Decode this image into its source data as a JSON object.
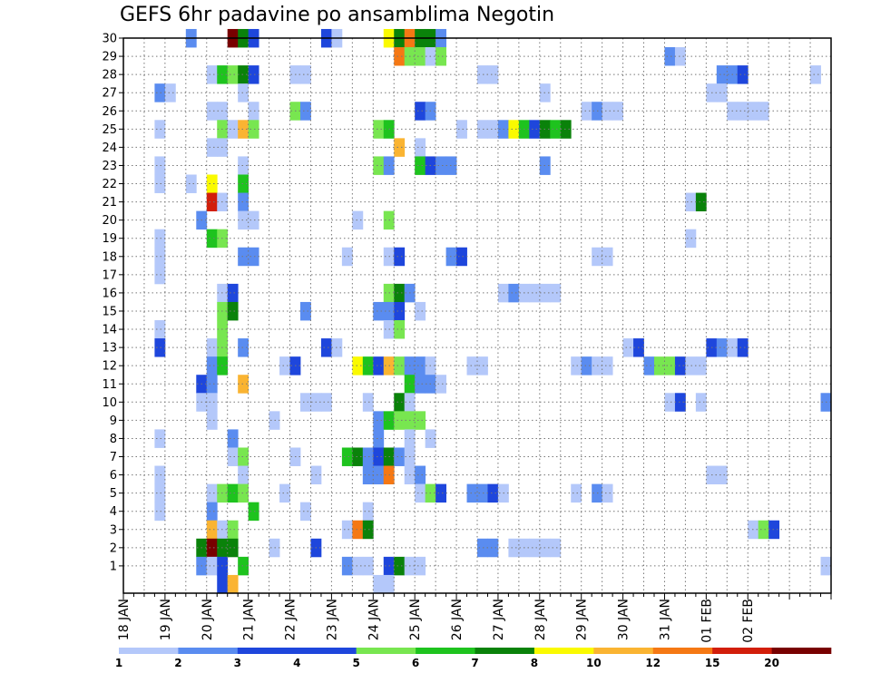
{
  "chart_data": {
    "type": "heatmap",
    "title": "GEFS 6hr padavine po ansamblima Negotin",
    "xlabel": "",
    "ylabel": "",
    "members": [
      1,
      2,
      3,
      4,
      5,
      6,
      7,
      8,
      9,
      10,
      11,
      12,
      13,
      14,
      15,
      16,
      17,
      18,
      19,
      20,
      21,
      22,
      23,
      24,
      25,
      26,
      27,
      28,
      29,
      30
    ],
    "time_step_hours": 6,
    "x_tick_labels": [
      "18 JAN",
      "19 JAN",
      "20 JAN",
      "21 JAN",
      "22 JAN",
      "23 JAN",
      "24 JAN",
      "25 JAN",
      "26 JAN",
      "27 JAN",
      "28 JAN",
      "29 JAN",
      "30 JAN",
      "31 JAN",
      "01 FEB",
      "02 FEB"
    ],
    "colorbar": {
      "levels": [
        1,
        2,
        3,
        4,
        5,
        6,
        7,
        8,
        10,
        12,
        15,
        20
      ],
      "colors": [
        "#b4c8fa",
        "#5a8cf0",
        "#1e46dc",
        "#1e46dc",
        "#78e650",
        "#1ec31e",
        "#0a820a",
        "#fafa00",
        "#fab432",
        "#f57814",
        "#d21e0a",
        "#780000"
      ]
    },
    "cells": [
      {
        "m": 30,
        "t": 6,
        "v": 2
      },
      {
        "m": 30,
        "t": 10,
        "v": 20
      },
      {
        "m": 30,
        "t": 11,
        "v": 7
      },
      {
        "m": 30,
        "t": 12,
        "v": 3
      },
      {
        "m": 30,
        "t": 19,
        "v": 3
      },
      {
        "m": 30,
        "t": 20,
        "v": 1
      },
      {
        "m": 30,
        "t": 25,
        "v": 8
      },
      {
        "m": 30,
        "t": 26,
        "v": 7
      },
      {
        "m": 30,
        "t": 27,
        "v": 12
      },
      {
        "m": 30,
        "t": 28,
        "v": 7
      },
      {
        "m": 30,
        "t": 29,
        "v": 7
      },
      {
        "m": 30,
        "t": 30,
        "v": 2
      },
      {
        "m": 29,
        "t": 26,
        "v": 12
      },
      {
        "m": 29,
        "t": 27,
        "v": 5
      },
      {
        "m": 29,
        "t": 28,
        "v": 5
      },
      {
        "m": 29,
        "t": 29,
        "v": 1
      },
      {
        "m": 29,
        "t": 30,
        "v": 5
      },
      {
        "m": 29,
        "t": 52,
        "v": 2
      },
      {
        "m": 29,
        "t": 53,
        "v": 1
      },
      {
        "m": 28,
        "t": 8,
        "v": 1
      },
      {
        "m": 28,
        "t": 9,
        "v": 6
      },
      {
        "m": 28,
        "t": 10,
        "v": 5
      },
      {
        "m": 28,
        "t": 11,
        "v": 7
      },
      {
        "m": 28,
        "t": 12,
        "v": 3
      },
      {
        "m": 28,
        "t": 16,
        "v": 1
      },
      {
        "m": 28,
        "t": 17,
        "v": 1
      },
      {
        "m": 28,
        "t": 34,
        "v": 1
      },
      {
        "m": 28,
        "t": 35,
        "v": 1
      },
      {
        "m": 28,
        "t": 57,
        "v": 2
      },
      {
        "m": 28,
        "t": 58,
        "v": 2
      },
      {
        "m": 28,
        "t": 59,
        "v": 3
      },
      {
        "m": 28,
        "t": 66,
        "v": 1
      },
      {
        "m": 27,
        "t": 3,
        "v": 2
      },
      {
        "m": 27,
        "t": 4,
        "v": 1
      },
      {
        "m": 27,
        "t": 11,
        "v": 1
      },
      {
        "m": 27,
        "t": 40,
        "v": 1
      },
      {
        "m": 27,
        "t": 56,
        "v": 1
      },
      {
        "m": 27,
        "t": 57,
        "v": 1
      },
      {
        "m": 26,
        "t": 8,
        "v": 1
      },
      {
        "m": 26,
        "t": 9,
        "v": 1
      },
      {
        "m": 26,
        "t": 12,
        "v": 1
      },
      {
        "m": 26,
        "t": 16,
        "v": 5
      },
      {
        "m": 26,
        "t": 17,
        "v": 2
      },
      {
        "m": 26,
        "t": 28,
        "v": 3
      },
      {
        "m": 26,
        "t": 29,
        "v": 2
      },
      {
        "m": 26,
        "t": 44,
        "v": 1
      },
      {
        "m": 26,
        "t": 45,
        "v": 2
      },
      {
        "m": 26,
        "t": 46,
        "v": 1
      },
      {
        "m": 26,
        "t": 47,
        "v": 1
      },
      {
        "m": 26,
        "t": 58,
        "v": 1
      },
      {
        "m": 26,
        "t": 59,
        "v": 1
      },
      {
        "m": 26,
        "t": 60,
        "v": 1
      },
      {
        "m": 26,
        "t": 61,
        "v": 1
      },
      {
        "m": 25,
        "t": 3,
        "v": 1
      },
      {
        "m": 25,
        "t": 9,
        "v": 5
      },
      {
        "m": 25,
        "t": 10,
        "v": 1
      },
      {
        "m": 25,
        "t": 11,
        "v": 10
      },
      {
        "m": 25,
        "t": 12,
        "v": 5
      },
      {
        "m": 25,
        "t": 24,
        "v": 5
      },
      {
        "m": 25,
        "t": 25,
        "v": 6
      },
      {
        "m": 25,
        "t": 32,
        "v": 1
      },
      {
        "m": 25,
        "t": 34,
        "v": 1
      },
      {
        "m": 25,
        "t": 35,
        "v": 1
      },
      {
        "m": 25,
        "t": 36,
        "v": 2
      },
      {
        "m": 25,
        "t": 37,
        "v": 8
      },
      {
        "m": 25,
        "t": 38,
        "v": 6
      },
      {
        "m": 25,
        "t": 39,
        "v": 3
      },
      {
        "m": 25,
        "t": 40,
        "v": 7
      },
      {
        "m": 25,
        "t": 41,
        "v": 6
      },
      {
        "m": 25,
        "t": 42,
        "v": 7
      },
      {
        "m": 24,
        "t": 8,
        "v": 1
      },
      {
        "m": 24,
        "t": 9,
        "v": 1
      },
      {
        "m": 24,
        "t": 26,
        "v": 10
      },
      {
        "m": 24,
        "t": 28,
        "v": 1
      },
      {
        "m": 23,
        "t": 3,
        "v": 1
      },
      {
        "m": 23,
        "t": 11,
        "v": 1
      },
      {
        "m": 23,
        "t": 24,
        "v": 5
      },
      {
        "m": 23,
        "t": 25,
        "v": 2
      },
      {
        "m": 23,
        "t": 28,
        "v": 6
      },
      {
        "m": 23,
        "t": 29,
        "v": 3
      },
      {
        "m": 23,
        "t": 30,
        "v": 2
      },
      {
        "m": 23,
        "t": 31,
        "v": 2
      },
      {
        "m": 23,
        "t": 40,
        "v": 2
      },
      {
        "m": 22,
        "t": 3,
        "v": 1
      },
      {
        "m": 22,
        "t": 6,
        "v": 1
      },
      {
        "m": 22,
        "t": 8,
        "v": 8
      },
      {
        "m": 22,
        "t": 11,
        "v": 6
      },
      {
        "m": 21,
        "t": 8,
        "v": 15
      },
      {
        "m": 21,
        "t": 9,
        "v": 1
      },
      {
        "m": 21,
        "t": 11,
        "v": 2
      },
      {
        "m": 21,
        "t": 54,
        "v": 1
      },
      {
        "m": 21,
        "t": 55,
        "v": 7
      },
      {
        "m": 20,
        "t": 7,
        "v": 2
      },
      {
        "m": 20,
        "t": 11,
        "v": 1
      },
      {
        "m": 20,
        "t": 12,
        "v": 1
      },
      {
        "m": 20,
        "t": 22,
        "v": 1
      },
      {
        "m": 20,
        "t": 25,
        "v": 5
      },
      {
        "m": 19,
        "t": 3,
        "v": 1
      },
      {
        "m": 19,
        "t": 8,
        "v": 6
      },
      {
        "m": 19,
        "t": 9,
        "v": 5
      },
      {
        "m": 19,
        "t": 54,
        "v": 1
      },
      {
        "m": 18,
        "t": 3,
        "v": 1
      },
      {
        "m": 18,
        "t": 11,
        "v": 2
      },
      {
        "m": 18,
        "t": 12,
        "v": 2
      },
      {
        "m": 18,
        "t": 21,
        "v": 1
      },
      {
        "m": 18,
        "t": 25,
        "v": 1
      },
      {
        "m": 18,
        "t": 26,
        "v": 3
      },
      {
        "m": 18,
        "t": 31,
        "v": 2
      },
      {
        "m": 18,
        "t": 32,
        "v": 3
      },
      {
        "m": 18,
        "t": 45,
        "v": 1
      },
      {
        "m": 18,
        "t": 46,
        "v": 1
      },
      {
        "m": 17,
        "t": 3,
        "v": 1
      },
      {
        "m": 16,
        "t": 9,
        "v": 1
      },
      {
        "m": 16,
        "t": 10,
        "v": 3
      },
      {
        "m": 16,
        "t": 25,
        "v": 5
      },
      {
        "m": 16,
        "t": 26,
        "v": 7
      },
      {
        "m": 16,
        "t": 27,
        "v": 2
      },
      {
        "m": 16,
        "t": 36,
        "v": 1
      },
      {
        "m": 16,
        "t": 37,
        "v": 2
      },
      {
        "m": 16,
        "t": 38,
        "v": 1
      },
      {
        "m": 16,
        "t": 39,
        "v": 1
      },
      {
        "m": 16,
        "t": 40,
        "v": 1
      },
      {
        "m": 16,
        "t": 41,
        "v": 1
      },
      {
        "m": 15,
        "t": 9,
        "v": 5
      },
      {
        "m": 15,
        "t": 10,
        "v": 7
      },
      {
        "m": 15,
        "t": 17,
        "v": 2
      },
      {
        "m": 15,
        "t": 24,
        "v": 2
      },
      {
        "m": 15,
        "t": 25,
        "v": 2
      },
      {
        "m": 15,
        "t": 26,
        "v": 3
      },
      {
        "m": 15,
        "t": 28,
        "v": 1
      },
      {
        "m": 14,
        "t": 3,
        "v": 1
      },
      {
        "m": 14,
        "t": 9,
        "v": 5
      },
      {
        "m": 14,
        "t": 25,
        "v": 1
      },
      {
        "m": 14,
        "t": 26,
        "v": 5
      },
      {
        "m": 13,
        "t": 3,
        "v": 3
      },
      {
        "m": 13,
        "t": 8,
        "v": 1
      },
      {
        "m": 13,
        "t": 9,
        "v": 5
      },
      {
        "m": 13,
        "t": 11,
        "v": 2
      },
      {
        "m": 13,
        "t": 19,
        "v": 3
      },
      {
        "m": 13,
        "t": 20,
        "v": 1
      },
      {
        "m": 13,
        "t": 48,
        "v": 1
      },
      {
        "m": 13,
        "t": 49,
        "v": 3
      },
      {
        "m": 13,
        "t": 56,
        "v": 3
      },
      {
        "m": 13,
        "t": 57,
        "v": 2
      },
      {
        "m": 13,
        "t": 58,
        "v": 1
      },
      {
        "m": 13,
        "t": 59,
        "v": 3
      },
      {
        "m": 12,
        "t": 8,
        "v": 2
      },
      {
        "m": 12,
        "t": 9,
        "v": 6
      },
      {
        "m": 12,
        "t": 15,
        "v": 1
      },
      {
        "m": 12,
        "t": 16,
        "v": 3
      },
      {
        "m": 12,
        "t": 22,
        "v": 8
      },
      {
        "m": 12,
        "t": 23,
        "v": 6
      },
      {
        "m": 12,
        "t": 24,
        "v": 3
      },
      {
        "m": 12,
        "t": 25,
        "v": 10
      },
      {
        "m": 12,
        "t": 26,
        "v": 5
      },
      {
        "m": 12,
        "t": 27,
        "v": 2
      },
      {
        "m": 12,
        "t": 28,
        "v": 2
      },
      {
        "m": 12,
        "t": 29,
        "v": 1
      },
      {
        "m": 12,
        "t": 33,
        "v": 1
      },
      {
        "m": 12,
        "t": 34,
        "v": 1
      },
      {
        "m": 12,
        "t": 43,
        "v": 1
      },
      {
        "m": 12,
        "t": 44,
        "v": 2
      },
      {
        "m": 12,
        "t": 45,
        "v": 1
      },
      {
        "m": 12,
        "t": 46,
        "v": 1
      },
      {
        "m": 12,
        "t": 50,
        "v": 2
      },
      {
        "m": 12,
        "t": 51,
        "v": 5
      },
      {
        "m": 12,
        "t": 52,
        "v": 5
      },
      {
        "m": 12,
        "t": 53,
        "v": 3
      },
      {
        "m": 12,
        "t": 54,
        "v": 1
      },
      {
        "m": 12,
        "t": 55,
        "v": 1
      },
      {
        "m": 11,
        "t": 7,
        "v": 3
      },
      {
        "m": 11,
        "t": 8,
        "v": 2
      },
      {
        "m": 11,
        "t": 11,
        "v": 10
      },
      {
        "m": 11,
        "t": 27,
        "v": 6
      },
      {
        "m": 11,
        "t": 28,
        "v": 2
      },
      {
        "m": 11,
        "t": 29,
        "v": 2
      },
      {
        "m": 11,
        "t": 30,
        "v": 1
      },
      {
        "m": 10,
        "t": 7,
        "v": 1
      },
      {
        "m": 10,
        "t": 8,
        "v": 1
      },
      {
        "m": 10,
        "t": 17,
        "v": 1
      },
      {
        "m": 10,
        "t": 18,
        "v": 1
      },
      {
        "m": 10,
        "t": 19,
        "v": 1
      },
      {
        "m": 10,
        "t": 23,
        "v": 1
      },
      {
        "m": 10,
        "t": 26,
        "v": 7
      },
      {
        "m": 10,
        "t": 27,
        "v": 1
      },
      {
        "m": 10,
        "t": 52,
        "v": 1
      },
      {
        "m": 10,
        "t": 53,
        "v": 3
      },
      {
        "m": 10,
        "t": 55,
        "v": 1
      },
      {
        "m": 10,
        "t": 67,
        "v": 2
      },
      {
        "m": 9,
        "t": 8,
        "v": 1
      },
      {
        "m": 9,
        "t": 14,
        "v": 1
      },
      {
        "m": 9,
        "t": 24,
        "v": 2
      },
      {
        "m": 9,
        "t": 25,
        "v": 6
      },
      {
        "m": 9,
        "t": 26,
        "v": 5
      },
      {
        "m": 9,
        "t": 27,
        "v": 5
      },
      {
        "m": 9,
        "t": 28,
        "v": 5
      },
      {
        "m": 8,
        "t": 3,
        "v": 1
      },
      {
        "m": 8,
        "t": 10,
        "v": 2
      },
      {
        "m": 8,
        "t": 24,
        "v": 2
      },
      {
        "m": 8,
        "t": 27,
        "v": 1
      },
      {
        "m": 8,
        "t": 29,
        "v": 1
      },
      {
        "m": 7,
        "t": 10,
        "v": 1
      },
      {
        "m": 7,
        "t": 11,
        "v": 5
      },
      {
        "m": 7,
        "t": 16,
        "v": 1
      },
      {
        "m": 7,
        "t": 21,
        "v": 6
      },
      {
        "m": 7,
        "t": 22,
        "v": 7
      },
      {
        "m": 7,
        "t": 23,
        "v": 2
      },
      {
        "m": 7,
        "t": 24,
        "v": 3
      },
      {
        "m": 7,
        "t": 25,
        "v": 7
      },
      {
        "m": 7,
        "t": 26,
        "v": 2
      },
      {
        "m": 7,
        "t": 27,
        "v": 1
      },
      {
        "m": 6,
        "t": 3,
        "v": 1
      },
      {
        "m": 6,
        "t": 11,
        "v": 1
      },
      {
        "m": 6,
        "t": 18,
        "v": 1
      },
      {
        "m": 6,
        "t": 23,
        "v": 2
      },
      {
        "m": 6,
        "t": 24,
        "v": 2
      },
      {
        "m": 6,
        "t": 25,
        "v": 12
      },
      {
        "m": 6,
        "t": 27,
        "v": 1
      },
      {
        "m": 6,
        "t": 28,
        "v": 2
      },
      {
        "m": 6,
        "t": 56,
        "v": 1
      },
      {
        "m": 6,
        "t": 57,
        "v": 1
      },
      {
        "m": 5,
        "t": 3,
        "v": 1
      },
      {
        "m": 5,
        "t": 8,
        "v": 1
      },
      {
        "m": 5,
        "t": 9,
        "v": 5
      },
      {
        "m": 5,
        "t": 10,
        "v": 6
      },
      {
        "m": 5,
        "t": 11,
        "v": 5
      },
      {
        "m": 5,
        "t": 15,
        "v": 1
      },
      {
        "m": 5,
        "t": 28,
        "v": 1
      },
      {
        "m": 5,
        "t": 29,
        "v": 5
      },
      {
        "m": 5,
        "t": 30,
        "v": 3
      },
      {
        "m": 5,
        "t": 33,
        "v": 2
      },
      {
        "m": 5,
        "t": 34,
        "v": 2
      },
      {
        "m": 5,
        "t": 35,
        "v": 3
      },
      {
        "m": 5,
        "t": 36,
        "v": 1
      },
      {
        "m": 5,
        "t": 43,
        "v": 1
      },
      {
        "m": 5,
        "t": 45,
        "v": 2
      },
      {
        "m": 5,
        "t": 46,
        "v": 1
      },
      {
        "m": 4,
        "t": 3,
        "v": 1
      },
      {
        "m": 4,
        "t": 8,
        "v": 2
      },
      {
        "m": 4,
        "t": 12,
        "v": 6
      },
      {
        "m": 4,
        "t": 17,
        "v": 1
      },
      {
        "m": 4,
        "t": 23,
        "v": 1
      },
      {
        "m": 3,
        "t": 8,
        "v": 10
      },
      {
        "m": 3,
        "t": 9,
        "v": 1
      },
      {
        "m": 3,
        "t": 10,
        "v": 5
      },
      {
        "m": 3,
        "t": 21,
        "v": 1
      },
      {
        "m": 3,
        "t": 22,
        "v": 12
      },
      {
        "m": 3,
        "t": 23,
        "v": 7
      },
      {
        "m": 3,
        "t": 60,
        "v": 1
      },
      {
        "m": 3,
        "t": 61,
        "v": 5
      },
      {
        "m": 3,
        "t": 62,
        "v": 3
      },
      {
        "m": 2,
        "t": 7,
        "v": 7
      },
      {
        "m": 2,
        "t": 8,
        "v": 20
      },
      {
        "m": 2,
        "t": 9,
        "v": 7
      },
      {
        "m": 2,
        "t": 10,
        "v": 7
      },
      {
        "m": 2,
        "t": 14,
        "v": 1
      },
      {
        "m": 2,
        "t": 18,
        "v": 3
      },
      {
        "m": 2,
        "t": 34,
        "v": 2
      },
      {
        "m": 2,
        "t": 35,
        "v": 2
      },
      {
        "m": 2,
        "t": 37,
        "v": 1
      },
      {
        "m": 2,
        "t": 38,
        "v": 1
      },
      {
        "m": 2,
        "t": 39,
        "v": 1
      },
      {
        "m": 2,
        "t": 40,
        "v": 1
      },
      {
        "m": 2,
        "t": 41,
        "v": 1
      },
      {
        "m": 1,
        "t": 7,
        "v": 2
      },
      {
        "m": 1,
        "t": 8,
        "v": 1
      },
      {
        "m": 1,
        "t": 9,
        "v": 3
      },
      {
        "m": 1,
        "t": 11,
        "v": 6
      },
      {
        "m": 1,
        "t": 21,
        "v": 2
      },
      {
        "m": 1,
        "t": 22,
        "v": 1
      },
      {
        "m": 1,
        "t": 23,
        "v": 1
      },
      {
        "m": 1,
        "t": 25,
        "v": 3
      },
      {
        "m": 1,
        "t": 26,
        "v": 7
      },
      {
        "m": 1,
        "t": 27,
        "v": 1
      },
      {
        "m": 1,
        "t": 28,
        "v": 1
      },
      {
        "m": 1,
        "t": 67,
        "v": 1
      },
      {
        "m": 0,
        "t": 9,
        "v": 3
      },
      {
        "m": 0,
        "t": 10,
        "v": 10
      },
      {
        "m": 0,
        "t": 24,
        "v": 1
      },
      {
        "m": 0,
        "t": 25,
        "v": 1
      }
    ]
  }
}
